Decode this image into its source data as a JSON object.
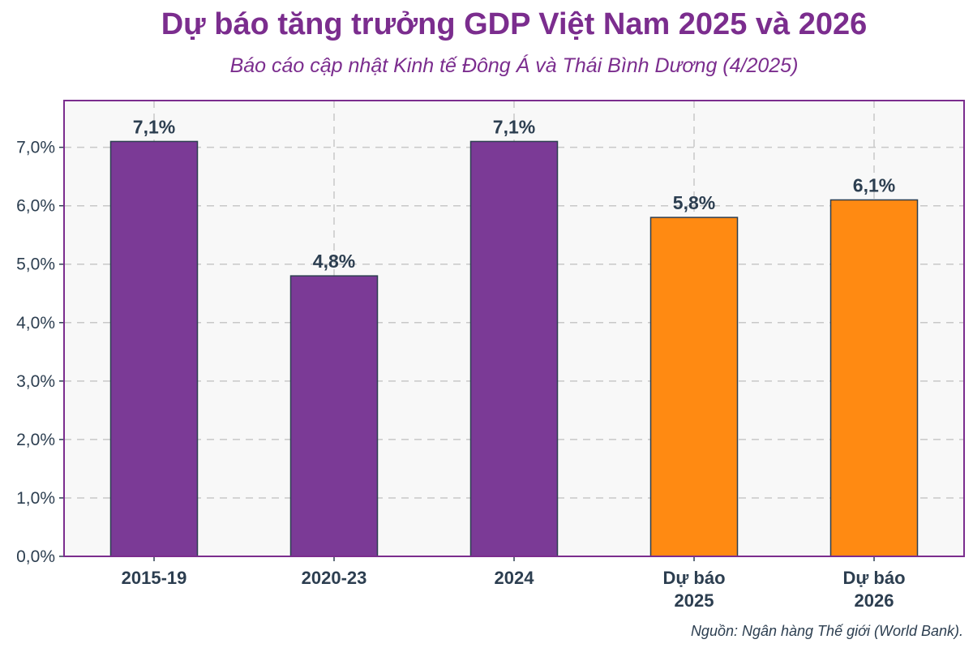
{
  "chart_data": {
    "type": "bar",
    "title": "Dự báo tăng trưởng GDP Việt Nam 2025 và 2026",
    "subtitle": "Báo cáo cập nhật Kinh tế Đông Á và Thái Bình Dương (4/2025)",
    "categories": [
      [
        "2015-19"
      ],
      [
        "2020-23"
      ],
      [
        "2024"
      ],
      [
        "Dự báo",
        "2025"
      ],
      [
        "Dự báo",
        "2026"
      ]
    ],
    "values": [
      7.1,
      4.8,
      7.1,
      5.8,
      6.1
    ],
    "data_labels": [
      "7,1%",
      "4,8%",
      "7,1%",
      "5,8%",
      "6,1%"
    ],
    "bar_colors": [
      "#7b3a96",
      "#7b3a96",
      "#7b3a96",
      "#ff8a12",
      "#ff8a12"
    ],
    "ylim": [
      0,
      7.8
    ],
    "yticks": [
      0,
      1,
      2,
      3,
      4,
      5,
      6,
      7
    ],
    "ytick_labels": [
      "0,0%",
      "1,0%",
      "2,0%",
      "3,0%",
      "4,0%",
      "5,0%",
      "6,0%",
      "7,0%"
    ],
    "xlabel": "",
    "ylabel": "",
    "grid": true,
    "source": "Nguồn: Ngân hàng Thế giới (World Bank).",
    "colors": {
      "title": "#7b2d8e",
      "axis_frame": "#7b2d8e",
      "plot_bg": "#f8f8f8",
      "grid": "#c8c8c8",
      "text": "#2c3e50",
      "bar_edge": "#2c3e50"
    }
  }
}
